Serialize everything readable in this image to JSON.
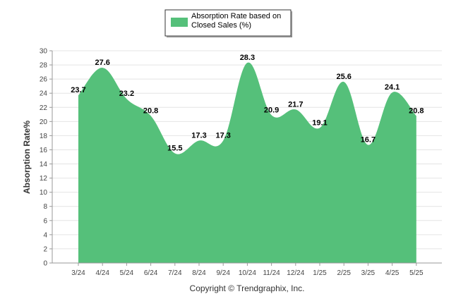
{
  "colors": {
    "area_fill": "#55c07a",
    "grid": "#e4e4e4",
    "axis": "#999999"
  },
  "legend": {
    "line1": "Absorption Rate based on",
    "line2": "Closed Sales (%)"
  },
  "footer": "Copyright © Trendgraphix, Inc.",
  "chart_data": {
    "type": "area",
    "categories": [
      "3/24",
      "4/24",
      "5/24",
      "6/24",
      "7/24",
      "8/24",
      "9/24",
      "10/24",
      "11/24",
      "12/24",
      "1/25",
      "2/25",
      "3/25",
      "4/25",
      "5/25"
    ],
    "series": [
      {
        "name": "Absorption Rate based on Closed Sales (%)",
        "values": [
          23.7,
          27.6,
          23.2,
          20.8,
          15.5,
          17.3,
          17.3,
          28.3,
          20.9,
          21.7,
          19.1,
          25.6,
          16.7,
          24.1,
          20.8
        ]
      }
    ],
    "data_labels": [
      "23.7",
      "27.6",
      "23.2",
      "20.8",
      "15.5",
      "17.3",
      "17.3",
      "28.3",
      "20.9",
      "21.7",
      "19.1",
      "25.6",
      "16.7",
      "24.1",
      "20.8"
    ],
    "ylabel": "Absorption Rate%",
    "xlabel": "",
    "ylim": [
      0,
      30
    ],
    "yticks": [
      "0",
      "2",
      "4",
      "6",
      "8",
      "10",
      "12",
      "14",
      "16",
      "18",
      "20",
      "22",
      "24",
      "26",
      "28",
      "30"
    ],
    "grid": true,
    "legend_position": "top-center"
  }
}
